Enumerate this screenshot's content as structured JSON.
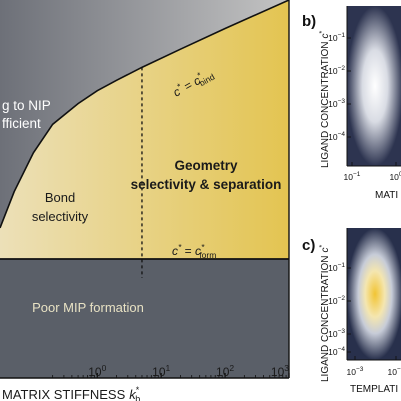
{
  "chart_data": [
    {
      "type": "region-diagram",
      "xlabel": "MATRIX STIFFNESS",
      "xlabel_symbol": "k",
      "xlabel_sub": "b",
      "xlabel_sup": "*",
      "xscale": "log",
      "xlim": [
        0.03,
        1000
      ],
      "ylim": [
        0,
        1
      ],
      "x_ticks": [
        {
          "base": "10",
          "exp": "0",
          "value": 1
        },
        {
          "base": "10",
          "exp": "1",
          "value": 10
        },
        {
          "base": "10",
          "exp": "2",
          "value": 100
        },
        {
          "base": "10",
          "exp": "3",
          "value": 1000
        }
      ],
      "regions": [
        {
          "name": "nip",
          "text_lines": [
            "g to NIP",
            "fficient"
          ]
        },
        {
          "name": "bond",
          "text_lines": [
            "Bond",
            "selectivity"
          ]
        },
        {
          "name": "geometry",
          "text_lines": [
            "Geometry",
            "selectivity & separation"
          ]
        },
        {
          "name": "poor",
          "text_lines": [
            "Poor MIP formation"
          ]
        }
      ],
      "curves": [
        {
          "name": "bind",
          "label_main": "c",
          "label_sup": "*",
          "label_eq": " = ",
          "label_c": "c",
          "label_sub": "bind"
        },
        {
          "name": "form",
          "label_main": "c",
          "label_sup": "*",
          "label_eq": " = ",
          "label_c": "c",
          "label_sub": "form"
        }
      ],
      "boundary_curve": [
        {
          "x": 0.03,
          "y": 0.12
        },
        {
          "x": 0.05,
          "y": 0.26
        },
        {
          "x": 0.1,
          "y": 0.41
        },
        {
          "x": 0.2,
          "y": 0.52
        },
        {
          "x": 0.5,
          "y": 0.6
        },
        {
          "x": 1,
          "y": 0.65
        },
        {
          "x": 2,
          "y": 0.69
        },
        {
          "x": 5,
          "y": 0.74
        },
        {
          "x": 20,
          "y": 0.81
        },
        {
          "x": 100,
          "y": 0.89
        },
        {
          "x": 1000,
          "y": 1.0
        }
      ],
      "form_level": 0.0,
      "dashed_x": 5,
      "colors": {
        "gray_dark": "#6d7078",
        "gray_light": "#c4c4c4",
        "gold_light": "#ece0b8",
        "gold_dark": "#e3c451",
        "poor": "#5a5f68",
        "line": "#111111",
        "text_light": "#ffffff",
        "text_dark": "#1a1a1a",
        "label_light": "#e8e2c4"
      }
    },
    {
      "panel": "b)",
      "type": "heatmap",
      "ylabel": "LIGAND CONCENTRATION",
      "ylabel_symbol": "c",
      "ylabel_sup": "*",
      "xlabel_partial": "MATI",
      "y_ticks": [
        {
          "base": "10",
          "exp": "−1"
        },
        {
          "base": "10",
          "exp": "−2"
        },
        {
          "base": "10",
          "exp": "−3"
        },
        {
          "base": "10",
          "exp": "−4"
        }
      ],
      "x_ticks": [
        {
          "base": "10",
          "exp": "−1"
        },
        {
          "base": "10",
          "exp": "0"
        }
      ]
    },
    {
      "panel": "c)",
      "type": "heatmap",
      "ylabel": "LIGAND CONCENTRATION",
      "ylabel_symbol": "c",
      "ylabel_sup": "*",
      "xlabel_partial": "TEMPLATI",
      "y_ticks": [
        {
          "base": "10",
          "exp": "−1"
        },
        {
          "base": "10",
          "exp": "−2"
        },
        {
          "base": "10",
          "exp": "−3"
        },
        {
          "base": "10",
          "exp": "−4"
        }
      ],
      "x_ticks": [
        {
          "base": "10",
          "exp": "−3"
        },
        {
          "base": "10",
          "exp": "−2"
        }
      ]
    }
  ]
}
